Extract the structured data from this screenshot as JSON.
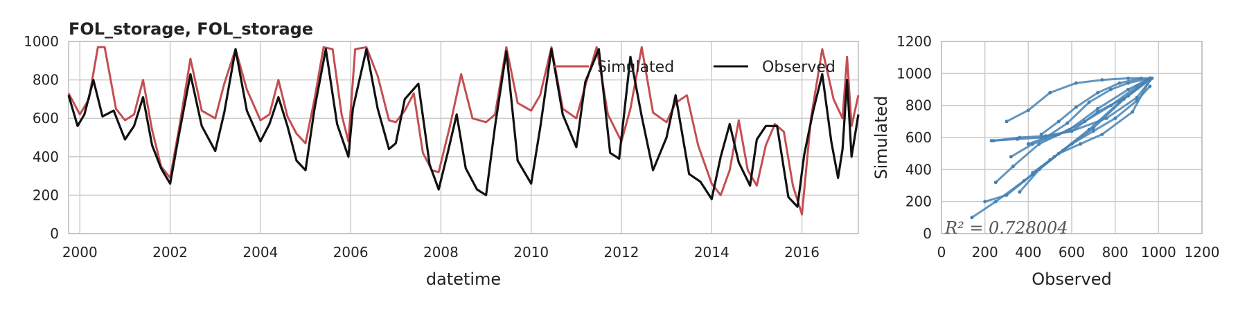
{
  "chart_data": [
    {
      "type": "line",
      "title": "FOL_storage, FOL_storage",
      "xlabel": "datetime",
      "ylabel": "",
      "xlim": [
        1999.75,
        2017.25
      ],
      "ylim": [
        0,
        1000
      ],
      "xticks": [
        "2000",
        "2002",
        "2004",
        "2006",
        "2008",
        "2010",
        "2012",
        "2014",
        "2016"
      ],
      "yticks": [
        "0",
        "200",
        "400",
        "600",
        "800",
        "1000"
      ],
      "grid": true,
      "legend_position": "top-right",
      "series": [
        {
          "name": "Simulated",
          "color": "#c44e52",
          "x": [
            1999.75,
            2000.0,
            2000.2,
            2000.4,
            2000.55,
            2000.8,
            2001.0,
            2001.2,
            2001.4,
            2001.6,
            2001.8,
            2002.0,
            2002.2,
            2002.45,
            2002.7,
            2003.0,
            2003.2,
            2003.45,
            2003.7,
            2004.0,
            2004.2,
            2004.4,
            2004.6,
            2004.8,
            2005.0,
            2005.2,
            2005.4,
            2005.6,
            2005.8,
            2005.95,
            2006.1,
            2006.35,
            2006.6,
            2006.85,
            2007.0,
            2007.2,
            2007.4,
            2007.6,
            2007.8,
            2007.95,
            2008.2,
            2008.45,
            2008.7,
            2009.0,
            2009.2,
            2009.45,
            2009.7,
            2010.0,
            2010.2,
            2010.45,
            2010.7,
            2011.0,
            2011.2,
            2011.45,
            2011.7,
            2012.0,
            2012.2,
            2012.45,
            2012.7,
            2013.0,
            2013.2,
            2013.45,
            2013.7,
            2014.0,
            2014.2,
            2014.4,
            2014.6,
            2014.8,
            2015.0,
            2015.2,
            2015.4,
            2015.6,
            2015.8,
            2016.0,
            2016.2,
            2016.45,
            2016.7,
            2016.9,
            2017.0,
            2017.1,
            2017.25
          ],
          "y": [
            730,
            620,
            700,
            970,
            970,
            650,
            590,
            620,
            800,
            540,
            350,
            290,
            550,
            910,
            640,
            600,
            780,
            960,
            750,
            590,
            620,
            800,
            610,
            520,
            470,
            700,
            970,
            960,
            620,
            480,
            960,
            970,
            820,
            590,
            580,
            640,
            730,
            420,
            330,
            320,
            560,
            830,
            600,
            580,
            620,
            970,
            680,
            640,
            720,
            970,
            650,
            600,
            770,
            970,
            620,
            480,
            650,
            970,
            630,
            580,
            680,
            720,
            460,
            260,
            200,
            330,
            590,
            330,
            250,
            460,
            570,
            530,
            250,
            100,
            600,
            960,
            700,
            600,
            920,
            560,
            720
          ]
        },
        {
          "name": "Observed",
          "color": "#111111",
          "x": [
            1999.75,
            1999.95,
            2000.1,
            2000.3,
            2000.5,
            2000.75,
            2001.0,
            2001.2,
            2001.4,
            2001.6,
            2001.8,
            2002.0,
            2002.2,
            2002.45,
            2002.7,
            2003.0,
            2003.2,
            2003.45,
            2003.7,
            2004.0,
            2004.2,
            2004.4,
            2004.6,
            2004.8,
            2005.0,
            2005.2,
            2005.45,
            2005.7,
            2005.95,
            2006.05,
            2006.35,
            2006.6,
            2006.85,
            2007.0,
            2007.2,
            2007.5,
            2007.75,
            2007.95,
            2008.15,
            2008.35,
            2008.55,
            2008.8,
            2009.0,
            2009.2,
            2009.45,
            2009.7,
            2010.0,
            2010.2,
            2010.45,
            2010.7,
            2011.0,
            2011.2,
            2011.5,
            2011.75,
            2011.95,
            2012.2,
            2012.45,
            2012.7,
            2013.0,
            2013.2,
            2013.5,
            2013.75,
            2014.0,
            2014.2,
            2014.4,
            2014.6,
            2014.85,
            2015.0,
            2015.2,
            2015.45,
            2015.7,
            2015.9,
            2016.05,
            2016.25,
            2016.45,
            2016.65,
            2016.8,
            2016.9,
            2017.0,
            2017.1,
            2017.25
          ],
          "y": [
            720,
            560,
            620,
            800,
            610,
            640,
            490,
            560,
            710,
            460,
            340,
            260,
            520,
            830,
            560,
            430,
            630,
            960,
            640,
            480,
            570,
            710,
            560,
            380,
            330,
            650,
            960,
            570,
            400,
            650,
            960,
            650,
            440,
            470,
            700,
            780,
            360,
            230,
            420,
            620,
            340,
            230,
            200,
            560,
            950,
            380,
            260,
            550,
            960,
            620,
            450,
            790,
            960,
            420,
            390,
            920,
            610,
            330,
            500,
            720,
            310,
            270,
            180,
            400,
            570,
            370,
            250,
            490,
            560,
            560,
            190,
            140,
            410,
            640,
            830,
            480,
            290,
            440,
            800,
            400,
            620
          ]
        }
      ]
    },
    {
      "type": "scatter",
      "title": "",
      "xlabel": "Observed",
      "ylabel": "Simulated",
      "xlim": [
        0,
        1200
      ],
      "ylim": [
        0,
        1200
      ],
      "xticks": [
        "0",
        "200",
        "400",
        "600",
        "800",
        "1000",
        "1200"
      ],
      "yticks": [
        "0",
        "200",
        "400",
        "600",
        "800",
        "1000",
        "1200"
      ],
      "grid": true,
      "color": "#4682b4",
      "annotation": "R² = 0.728004",
      "paths": [
        {
          "x": [
            140,
            250,
            380,
            520,
            680,
            820,
            960
          ],
          "y": [
            100,
            200,
            330,
            480,
            650,
            820,
            970
          ]
        },
        {
          "x": [
            200,
            300,
            420,
            560,
            700,
            840,
            960
          ],
          "y": [
            200,
            240,
            370,
            520,
            660,
            840,
            970
          ]
        },
        {
          "x": [
            250,
            330,
            450,
            590,
            720,
            860,
            960
          ],
          "y": [
            320,
            420,
            560,
            650,
            780,
            900,
            970
          ]
        },
        {
          "x": [
            230,
            350,
            460,
            600,
            760,
            900,
            970
          ],
          "y": [
            580,
            590,
            600,
            640,
            720,
            850,
            970
          ]
        },
        {
          "x": [
            300,
            400,
            500,
            620,
            740,
            860,
            960
          ],
          "y": [
            700,
            770,
            880,
            940,
            960,
            970,
            970
          ]
        },
        {
          "x": [
            360,
            450,
            540,
            640,
            740,
            880,
            960
          ],
          "y": [
            260,
            400,
            500,
            560,
            620,
            760,
            960
          ]
        },
        {
          "x": [
            320,
            420,
            540,
            660,
            780,
            900,
            960
          ],
          "y": [
            480,
            560,
            620,
            700,
            800,
            920,
            970
          ]
        },
        {
          "x": [
            400,
            480,
            580,
            680,
            780,
            860,
            960
          ],
          "y": [
            560,
            600,
            690,
            820,
            900,
            940,
            970
          ]
        },
        {
          "x": [
            420,
            500,
            600,
            700,
            800,
            900,
            960
          ],
          "y": [
            380,
            460,
            560,
            640,
            720,
            830,
            920
          ]
        },
        {
          "x": [
            460,
            540,
            620,
            720,
            820,
            920
          ],
          "y": [
            620,
            700,
            790,
            880,
            940,
            970
          ]
        },
        {
          "x": [
            240,
            360,
            480,
            600,
            720,
            860,
            960
          ],
          "y": [
            580,
            600,
            610,
            640,
            760,
            860,
            960
          ]
        }
      ]
    }
  ]
}
